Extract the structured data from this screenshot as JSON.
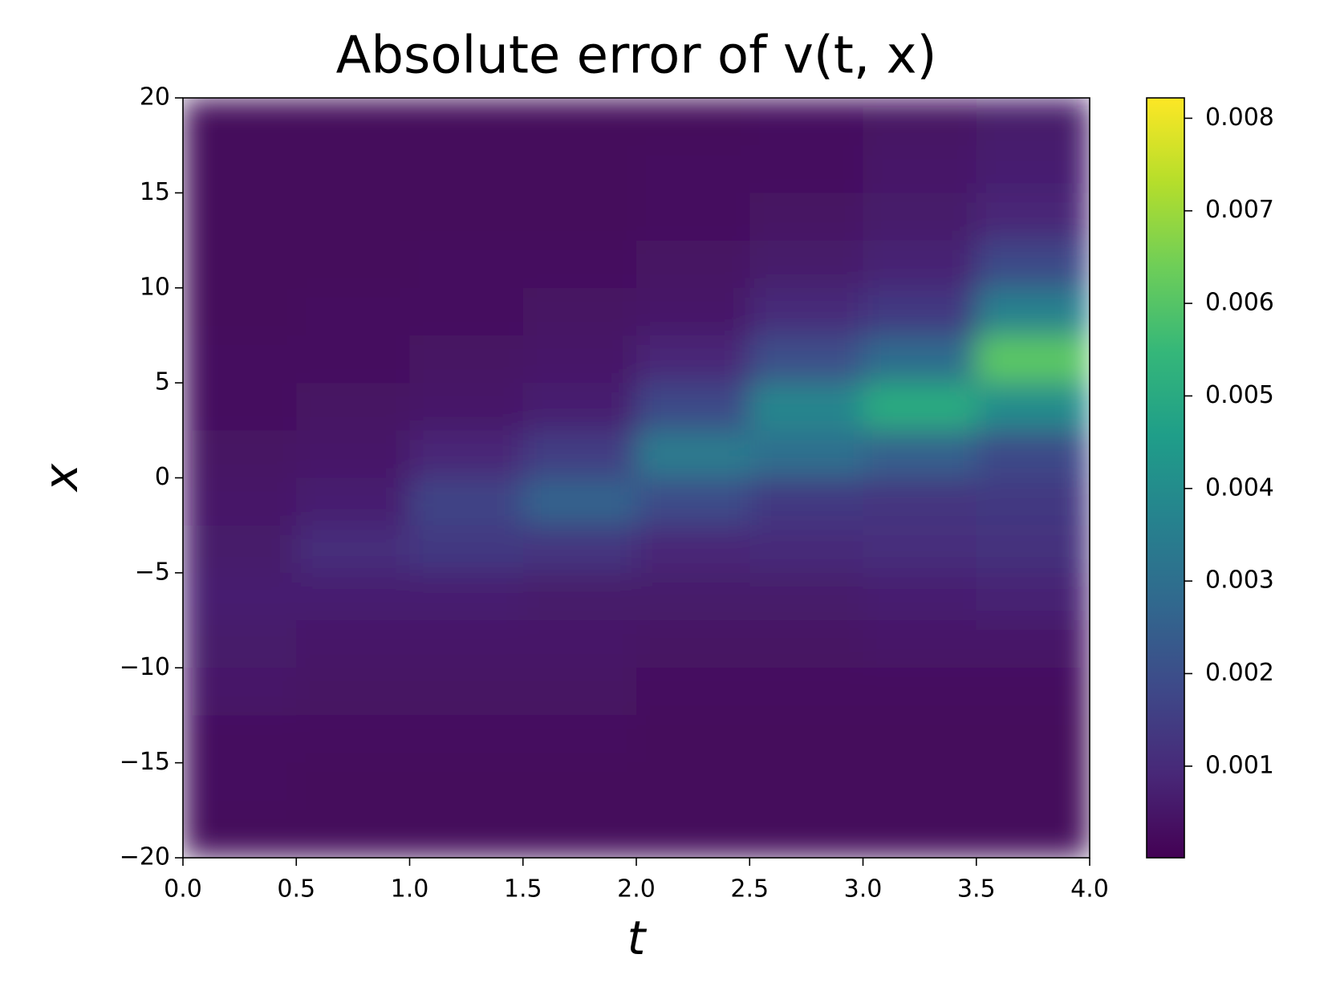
{
  "chart_data": {
    "type": "heatmap",
    "title": "Absolute error of v(t, x)",
    "x_label": "t",
    "y_label": "x",
    "x_edges": [
      0,
      0.5,
      1,
      1.5,
      2,
      2.5,
      3,
      3.5,
      4
    ],
    "y_edges": [
      20,
      17.5,
      15,
      12.5,
      10,
      7.5,
      5,
      2.5,
      0,
      -2.5,
      -5,
      -7.5,
      -10,
      -12.5,
      -15,
      -17.5,
      -20
    ],
    "values": [
      [
        0.0002,
        0.0002,
        0.0002,
        0.0002,
        0.0002,
        0.0003,
        0.0004,
        0.0006
      ],
      [
        0.0002,
        0.0002,
        0.0002,
        0.0002,
        0.0003,
        0.0003,
        0.0005,
        0.0007
      ],
      [
        0.0002,
        0.0002,
        0.0002,
        0.0002,
        0.0003,
        0.0004,
        0.0006,
        0.0009
      ],
      [
        0.0002,
        0.0002,
        0.0003,
        0.0003,
        0.0004,
        0.0006,
        0.0008,
        0.0018
      ],
      [
        0.0002,
        0.0003,
        0.0003,
        0.0004,
        0.0005,
        0.001,
        0.0014,
        0.0036
      ],
      [
        0.0003,
        0.0003,
        0.0004,
        0.0005,
        0.0009,
        0.002,
        0.0029,
        0.0061
      ],
      [
        0.0003,
        0.0004,
        0.0005,
        0.0007,
        0.0018,
        0.0038,
        0.0051,
        0.004
      ],
      [
        0.0004,
        0.0005,
        0.0009,
        0.0015,
        0.0034,
        0.003,
        0.0025,
        0.0018
      ],
      [
        0.0005,
        0.0007,
        0.0017,
        0.0026,
        0.0019,
        0.0014,
        0.0013,
        0.0014
      ],
      [
        0.0006,
        0.0011,
        0.0014,
        0.0013,
        0.0009,
        0.001,
        0.0011,
        0.0012
      ],
      [
        0.0007,
        0.0007,
        0.0007,
        0.0006,
        0.0006,
        0.0006,
        0.0007,
        0.0008
      ],
      [
        0.0006,
        0.0005,
        0.0005,
        0.0005,
        0.0004,
        0.0004,
        0.0005,
        0.0005
      ],
      [
        0.0005,
        0.0004,
        0.0004,
        0.0004,
        0.0003,
        0.0003,
        0.0003,
        0.0003
      ],
      [
        0.0003,
        0.0003,
        0.0003,
        0.0003,
        0.0002,
        0.0002,
        0.0002,
        0.0002
      ],
      [
        0.0003,
        0.0002,
        0.0002,
        0.0002,
        0.0002,
        0.0002,
        0.0002,
        0.0002
      ],
      [
        0.0002,
        0.0002,
        0.0002,
        0.0002,
        0.0002,
        0.0002,
        0.0002,
        0.0002
      ]
    ],
    "xlim": [
      0,
      4
    ],
    "xticks": [
      {
        "value": 0,
        "label": "0.0"
      },
      0.5,
      {
        "value": 1,
        "label": "1.0"
      },
      1.5,
      {
        "value": 2,
        "label": "2.0"
      },
      2.5,
      {
        "value": 3,
        "label": "3.0"
      },
      3.5,
      {
        "value": 4,
        "label": "4.0"
      }
    ],
    "ylim": [
      -20,
      20
    ],
    "yticks": [
      {
        "value": -20,
        "label": "−20"
      },
      {
        "value": -15,
        "label": "−15"
      },
      {
        "value": -10,
        "label": "−10"
      },
      {
        "value": -5,
        "label": "−5"
      },
      0,
      5,
      10,
      15,
      20
    ],
    "colormap": "viridis",
    "zlim": [
      1e-05,
      0.00822
    ],
    "zticks": [
      0.001,
      0.002,
      0.003,
      0.004,
      0.005,
      0.006,
      0.007,
      0.008
    ]
  }
}
